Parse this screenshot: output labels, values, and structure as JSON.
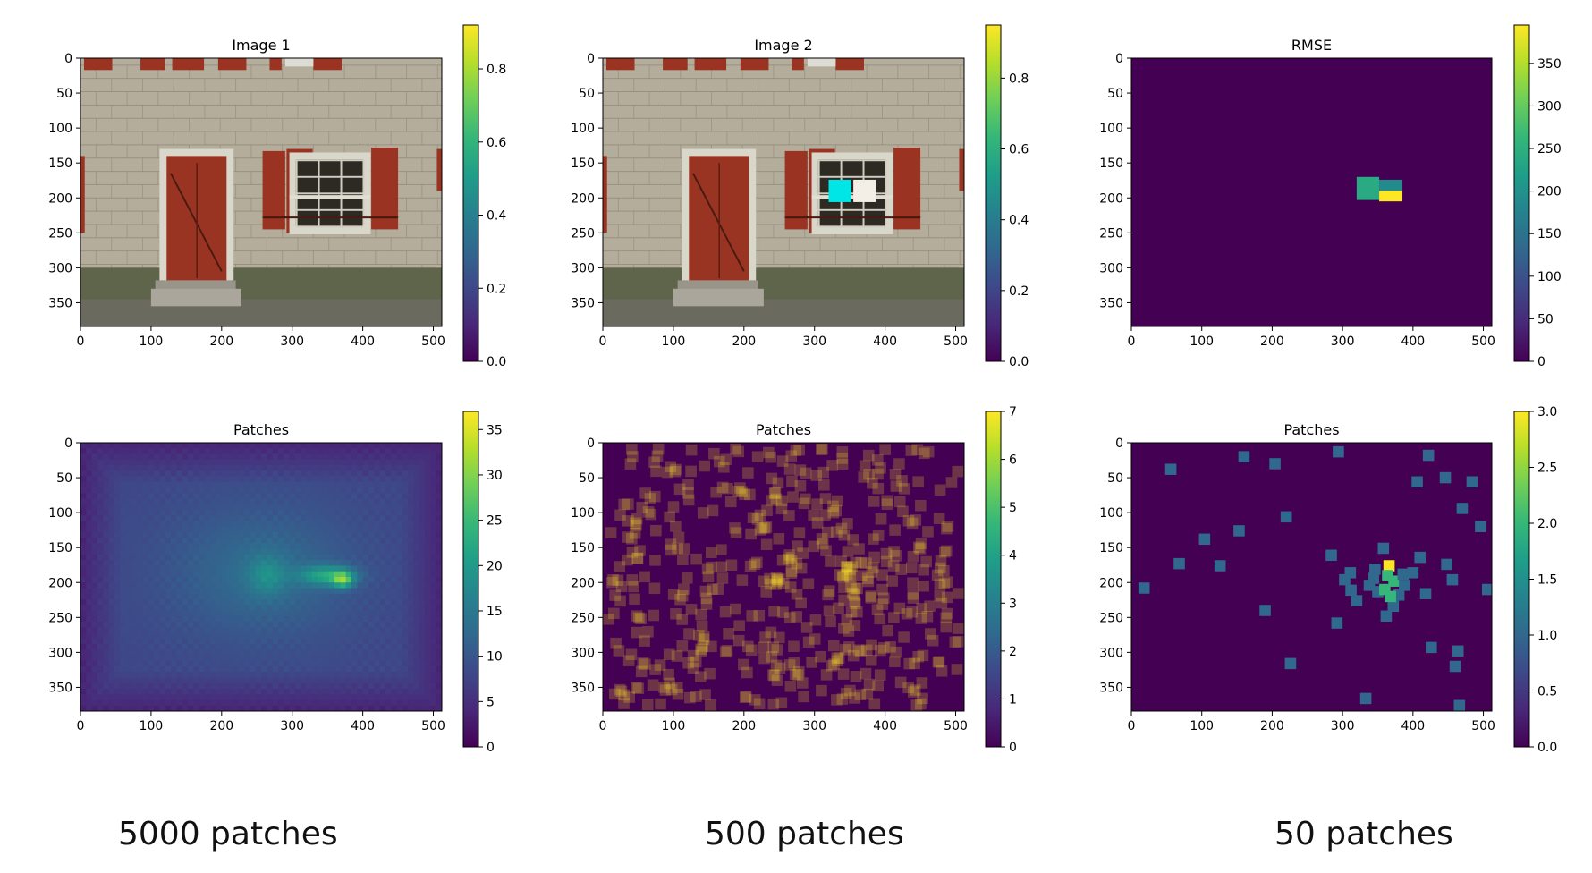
{
  "colors": {
    "colormap": "viridis",
    "viridis_stops": [
      "#440154",
      "#482878",
      "#3e4989",
      "#31688e",
      "#26828e",
      "#1f9e89",
      "#35b779",
      "#6ece58",
      "#b5de2b",
      "#fde725"
    ],
    "brick_wall": "#b4ad9b",
    "shutter_red": "#9a3322",
    "marker_cyan": "#00e5e5",
    "marker_white": "#f3efe6"
  },
  "icons": {
    "photo_panels": "house-facade-photo"
  },
  "captions": [
    "5000 patches",
    "500 patches",
    "50 patches"
  ],
  "chart_data": [
    {
      "type": "heatmap",
      "title": "Image 1",
      "content": "photo",
      "xlim": [
        0,
        512
      ],
      "ylim": [
        384,
        0
      ],
      "xticks": [
        "0",
        "100",
        "200",
        "300",
        "400",
        "500"
      ],
      "yticks": [
        "0",
        "50",
        "100",
        "150",
        "200",
        "250",
        "300",
        "350"
      ],
      "colorbar": {
        "range": [
          0,
          0.92
        ],
        "ticks": [
          "0.0",
          "0.2",
          "0.4",
          "0.6",
          "0.8"
        ]
      }
    },
    {
      "type": "heatmap",
      "title": "Image 2",
      "content": "photo",
      "markers": [
        {
          "color": "cyan",
          "x": [
            320,
            352
          ],
          "y": [
            174,
            206
          ]
        },
        {
          "color": "white",
          "x": [
            355,
            387
          ],
          "y": [
            174,
            206
          ]
        }
      ],
      "xlim": [
        0,
        512
      ],
      "ylim": [
        384,
        0
      ],
      "xticks": [
        "0",
        "100",
        "200",
        "300",
        "400",
        "500"
      ],
      "yticks": [
        "0",
        "50",
        "100",
        "150",
        "200",
        "250",
        "300",
        "350"
      ],
      "colorbar": {
        "range": [
          0,
          0.95
        ],
        "ticks": [
          "0.0",
          "0.2",
          "0.4",
          "0.6",
          "0.8"
        ]
      }
    },
    {
      "type": "heatmap",
      "title": "RMSE",
      "blocks": [
        {
          "x": [
            320,
            352
          ],
          "y": [
            170,
            203
          ],
          "value": 240
        },
        {
          "x": [
            352,
            385
          ],
          "y": [
            174,
            190
          ],
          "value": 190
        },
        {
          "x": [
            352,
            385
          ],
          "y": [
            190,
            205
          ],
          "value": 395
        }
      ],
      "xlim": [
        0,
        512
      ],
      "ylim": [
        384,
        0
      ],
      "xticks": [
        "0",
        "100",
        "200",
        "300",
        "400",
        "500"
      ],
      "yticks": [
        "0",
        "50",
        "100",
        "150",
        "200",
        "250",
        "300",
        "350"
      ],
      "colorbar": {
        "range": [
          0,
          395
        ],
        "ticks": [
          "0",
          "50",
          "100",
          "150",
          "200",
          "250",
          "300",
          "350"
        ]
      }
    },
    {
      "type": "heatmap",
      "title": "Patches",
      "patches": 5000,
      "field": {
        "base": 8,
        "blobs": [
          {
            "x": 256,
            "y": 185,
            "sx": 130,
            "sy": 95,
            "amp": 5
          },
          {
            "x": 265,
            "y": 190,
            "sx": 28,
            "sy": 28,
            "amp": 6
          },
          {
            "x": 350,
            "y": 190,
            "sx": 38,
            "sy": 14,
            "amp": 12
          },
          {
            "x": 372,
            "y": 196,
            "sx": 14,
            "sy": 11,
            "amp": 15
          }
        ]
      },
      "xlim": [
        0,
        512
      ],
      "ylim": [
        384,
        0
      ],
      "xticks": [
        "0",
        "100",
        "200",
        "300",
        "400",
        "500"
      ],
      "yticks": [
        "0",
        "50",
        "100",
        "150",
        "200",
        "250",
        "300",
        "350"
      ],
      "colorbar": {
        "range": [
          0,
          37
        ],
        "ticks": [
          "0",
          "5",
          "10",
          "15",
          "20",
          "25",
          "30",
          "35"
        ]
      }
    },
    {
      "type": "heatmap",
      "title": "Patches",
      "patches": 500,
      "patch_size": 16,
      "clusters": [
        {
          "x": 265,
          "y": 190,
          "r": 30,
          "n": 14
        },
        {
          "x": 350,
          "y": 195,
          "r": 40,
          "n": 18
        }
      ],
      "xlim": [
        0,
        512
      ],
      "ylim": [
        384,
        0
      ],
      "xticks": [
        "0",
        "100",
        "200",
        "300",
        "400",
        "500"
      ],
      "yticks": [
        "0",
        "50",
        "100",
        "150",
        "200",
        "250",
        "300",
        "350"
      ],
      "colorbar": {
        "range": [
          0,
          7
        ],
        "ticks": [
          "0",
          "1",
          "2",
          "3",
          "4",
          "5",
          "6",
          "7"
        ]
      }
    },
    {
      "type": "heatmap",
      "title": "Patches",
      "patches": 50,
      "patch_size": 16,
      "cells": [
        [
          10,
          200,
          1
        ],
        [
          48,
          30,
          1
        ],
        [
          60,
          165,
          1
        ],
        [
          96,
          130,
          1
        ],
        [
          118,
          168,
          1
        ],
        [
          145,
          118,
          1
        ],
        [
          152,
          12,
          1
        ],
        [
          182,
          232,
          1
        ],
        [
          196,
          22,
          1
        ],
        [
          212,
          98,
          1
        ],
        [
          218,
          308,
          1
        ],
        [
          276,
          153,
          1
        ],
        [
          286,
          5,
          1
        ],
        [
          284,
          250,
          1
        ],
        [
          295,
          188,
          1
        ],
        [
          303,
          178,
          1
        ],
        [
          312,
          218,
          1
        ],
        [
          325,
          358,
          1
        ],
        [
          330,
          196,
          1
        ],
        [
          336,
          186,
          1
        ],
        [
          342,
          205,
          1
        ],
        [
          350,
          143,
          1
        ],
        [
          358,
          168,
          3
        ],
        [
          356,
          182,
          2
        ],
        [
          352,
          202,
          2
        ],
        [
          365,
          190,
          2
        ],
        [
          372,
          210,
          1
        ],
        [
          378,
          180,
          1
        ],
        [
          364,
          226,
          1
        ],
        [
          354,
          240,
          1
        ],
        [
          392,
          178,
          1
        ],
        [
          398,
          48,
          1
        ],
        [
          402,
          156,
          1
        ],
        [
          414,
          10,
          1
        ],
        [
          410,
          208,
          1
        ],
        [
          418,
          285,
          1
        ],
        [
          438,
          42,
          1
        ],
        [
          440,
          166,
          1
        ],
        [
          448,
          188,
          1
        ],
        [
          452,
          312,
          1
        ],
        [
          456,
          290,
          1
        ],
        [
          458,
          368,
          1
        ],
        [
          462,
          86,
          1
        ],
        [
          476,
          48,
          1
        ],
        [
          488,
          112,
          1
        ],
        [
          498,
          202,
          1
        ],
        [
          360,
          212,
          2
        ],
        [
          338,
          173,
          1
        ],
        [
          304,
          203,
          1
        ],
        [
          380,
          196,
          1
        ]
      ],
      "xlim": [
        0,
        512
      ],
      "ylim": [
        384,
        0
      ],
      "xticks": [
        "0",
        "100",
        "200",
        "300",
        "400",
        "500"
      ],
      "yticks": [
        "0",
        "50",
        "100",
        "150",
        "200",
        "250",
        "300",
        "350"
      ],
      "colorbar": {
        "range": [
          0,
          3.0
        ],
        "ticks": [
          "0.0",
          "0.5",
          "1.0",
          "1.5",
          "2.0",
          "2.5",
          "3.0"
        ]
      }
    }
  ]
}
